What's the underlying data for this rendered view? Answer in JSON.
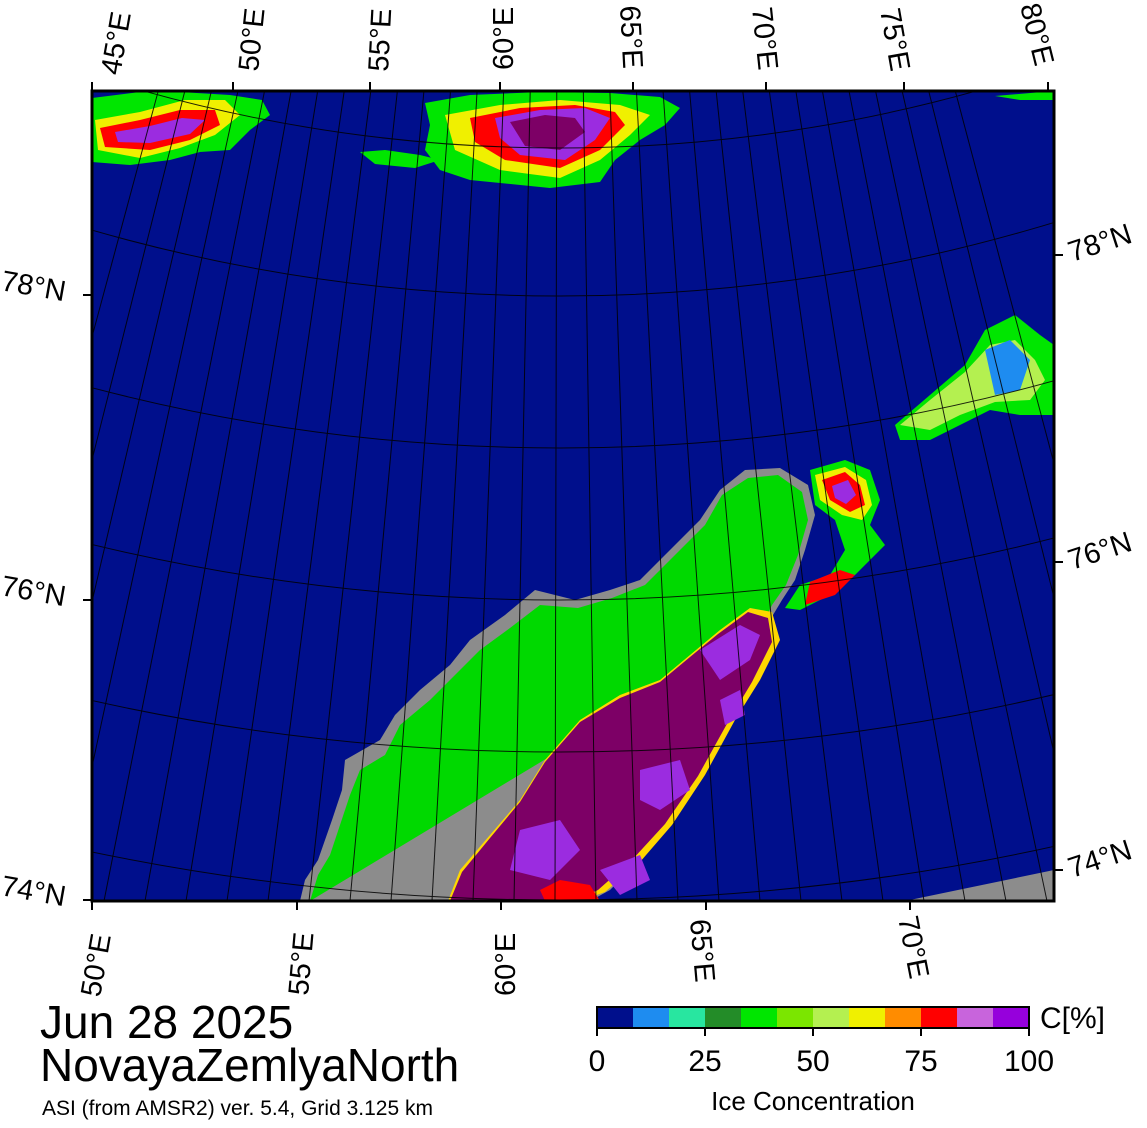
{
  "map": {
    "date": "Jun 28 2025",
    "region": "NovayaZemlyaNorth",
    "credit": "ASI (from AMSR2) ver. 5.4,  Grid 3.125 km",
    "top_lon_labels": [
      "45°E",
      "50°E",
      "55°E",
      "60°E",
      "65°E",
      "70°E",
      "75°E",
      "80°E"
    ],
    "bottom_lon_labels": [
      "50°E",
      "55°E",
      "60°E",
      "65°E",
      "70°E"
    ],
    "left_lat_labels": [
      "78°N",
      "76°N",
      "74°N"
    ],
    "right_lat_labels": [
      "78°N",
      "76°N",
      "74°N"
    ]
  },
  "colorbar": {
    "title": "Ice Concentration",
    "unit": "C[%]",
    "ticks": [
      "0",
      "25",
      "50",
      "75",
      "100"
    ],
    "colors": [
      "#000f8c",
      "#1e8cf0",
      "#28e6a0",
      "#238c28",
      "#00e600",
      "#7be600",
      "#b4f050",
      "#f0f000",
      "#ff8c00",
      "#ff0000",
      "#c864dc",
      "#9600dc"
    ]
  },
  "colors": {
    "ocean": "#000f8c",
    "land": "#00d900",
    "land_mask": "#8c8c8c",
    "ice_core": "#7d0066",
    "ice_high": "#9b2ce0"
  }
}
